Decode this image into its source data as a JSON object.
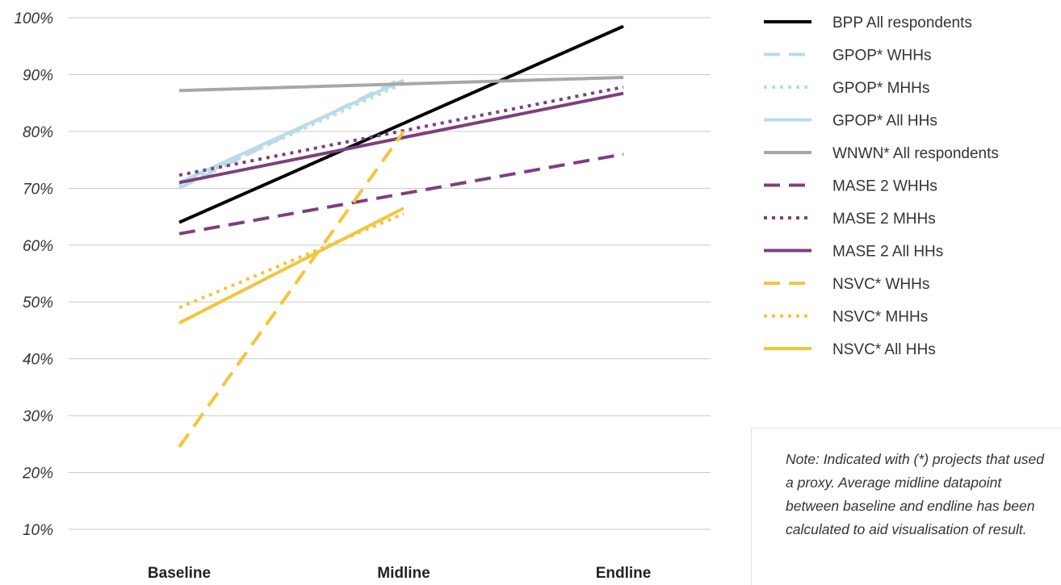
{
  "chart_data": {
    "type": "line",
    "categories": [
      "Baseline",
      "Midline",
      "Endline"
    ],
    "ylim": [
      10,
      100
    ],
    "yticks": [
      "10%",
      "20%",
      "30%",
      "40%",
      "50%",
      "60%",
      "70%",
      "80%",
      "90%",
      "100%"
    ],
    "grid": true,
    "legend_position": "right",
    "series": [
      {
        "name": "BPP All respondents",
        "values": [
          64,
          null,
          98.5
        ],
        "color": "#000000",
        "dash": "solid"
      },
      {
        "name": "GPOP* WHHs",
        "values": [
          70,
          89.5,
          null
        ],
        "color": "#b9dbe8",
        "dash": "dashed"
      },
      {
        "name": "GPOP* MHHs",
        "values": [
          70.5,
          88.5,
          null
        ],
        "color": "#b9dbe8",
        "dash": "dotted"
      },
      {
        "name": "GPOP* All HHs",
        "values": [
          71,
          89,
          null
        ],
        "color": "#b9dbe8",
        "dash": "solid"
      },
      {
        "name": "WNWN* All respondents",
        "values": [
          87.2,
          null,
          89.5
        ],
        "color": "#a7a7a7",
        "dash": "solid"
      },
      {
        "name": "MASE 2 WHHs",
        "values": [
          62,
          null,
          76
        ],
        "color": "#7e3f7e",
        "dash": "dashed"
      },
      {
        "name": "MASE 2 MHHs",
        "values": [
          72.3,
          null,
          87.8
        ],
        "color": "#7e3f7e",
        "dash": "dotted"
      },
      {
        "name": "MASE 2 All HHs",
        "values": [
          71,
          null,
          86.7
        ],
        "color": "#7e3f7e",
        "dash": "solid"
      },
      {
        "name": "NSVC* WHHs",
        "values": [
          24.5,
          80,
          null
        ],
        "color": "#f2c53d",
        "dash": "dashed"
      },
      {
        "name": "NSVC* MHHs",
        "values": [
          49,
          65.5,
          null
        ],
        "color": "#f2c53d",
        "dash": "dotted"
      },
      {
        "name": "NSVC* All HHs",
        "values": [
          46.3,
          66.5,
          null
        ],
        "color": "#f2c53d",
        "dash": "solid"
      }
    ]
  },
  "note": "Note: Indicated with (*) projects that used a proxy. Average midline datapoint between baseline and endline has been calculated to aid visualisation of result."
}
